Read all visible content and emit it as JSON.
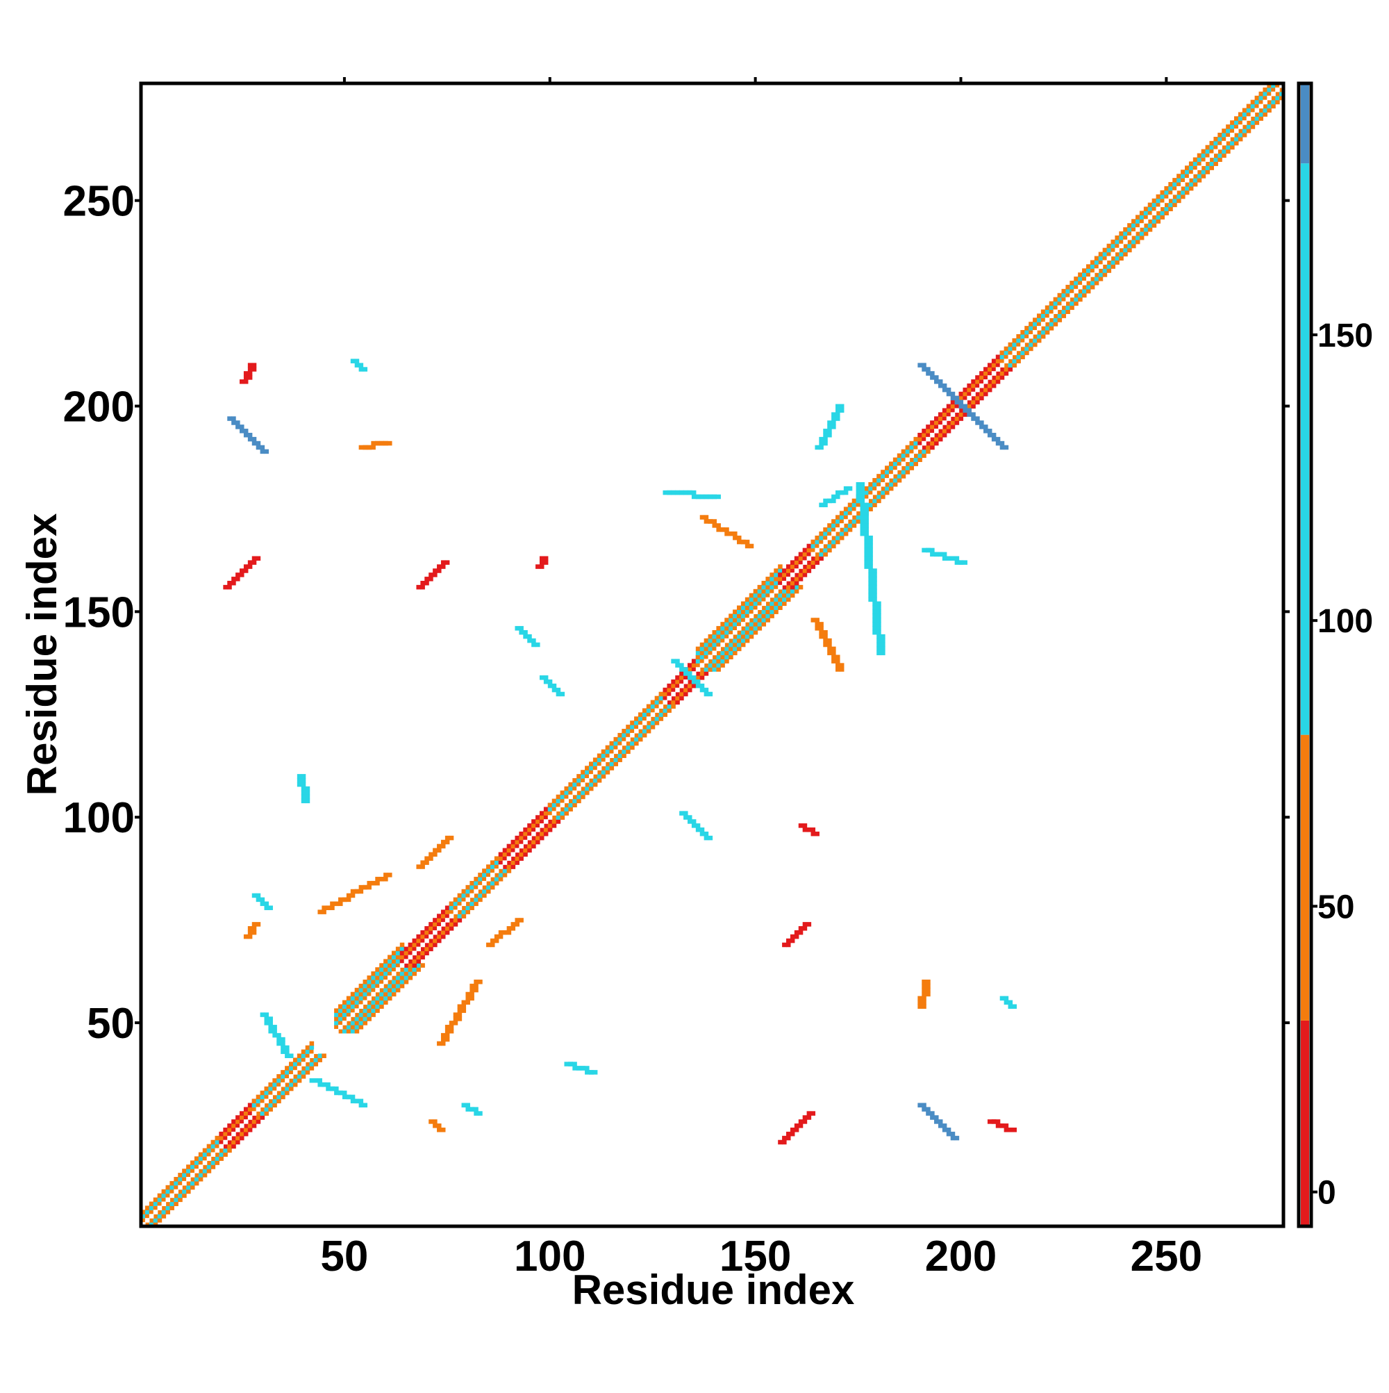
{
  "chart_data": {
    "type": "heatmap",
    "title": "",
    "xlabel": "Residue index",
    "ylabel": "Residue index",
    "xlim": [
      1,
      278
    ],
    "ylim": [
      1,
      278
    ],
    "xticks": [
      50,
      100,
      150,
      200,
      250
    ],
    "yticks": [
      50,
      100,
      150,
      200,
      250
    ],
    "grid": false,
    "colorbar": {
      "ticks": [
        0,
        50,
        100,
        150
      ],
      "range": [
        -6,
        194
      ],
      "bands": [
        {
          "from": -6,
          "to": 30,
          "color": "#e31a1c"
        },
        {
          "from": 30,
          "to": 80,
          "color": "#f47c0e"
        },
        {
          "from": 80,
          "to": 180,
          "color": "#29d6e6"
        },
        {
          "from": 180,
          "to": 194,
          "color": "#4a8cc4"
        }
      ]
    },
    "diagonal": {
      "from": 1,
      "to": 278,
      "segments": [
        {
          "from": 1,
          "to": 20,
          "pattern": "orange-cyan"
        },
        {
          "from": 20,
          "to": 28,
          "pattern": "red-orange"
        },
        {
          "from": 28,
          "to": 42,
          "pattern": "orange-cyan"
        },
        {
          "from": 48,
          "to": 64,
          "pattern": "orange-cyan-wide"
        },
        {
          "from": 64,
          "to": 76,
          "pattern": "red-orange"
        },
        {
          "from": 76,
          "to": 88,
          "pattern": "orange-cyan"
        },
        {
          "from": 88,
          "to": 100,
          "pattern": "red-orange"
        },
        {
          "from": 100,
          "to": 128,
          "pattern": "orange-cyan"
        },
        {
          "from": 128,
          "to": 136,
          "pattern": "red-orange"
        },
        {
          "from": 136,
          "to": 156,
          "pattern": "orange-cyan-wide"
        },
        {
          "from": 156,
          "to": 164,
          "pattern": "red-orange"
        },
        {
          "from": 164,
          "to": 190,
          "pattern": "orange-cyan"
        },
        {
          "from": 190,
          "to": 210,
          "pattern": "red-orange"
        },
        {
          "from": 210,
          "to": 278,
          "pattern": "orange-cyan"
        }
      ]
    },
    "contacts": [
      {
        "x1": 22,
        "y1": 197,
        "x2": 30,
        "y2": 189,
        "value": 185
      },
      {
        "x1": 190,
        "y1": 210,
        "x2": 210,
        "y2": 190,
        "value": 185
      },
      {
        "x1": 190,
        "y1": 30,
        "x2": 198,
        "y2": 22,
        "value": 185
      },
      {
        "x1": 21,
        "y1": 156,
        "x2": 28,
        "y2": 163,
        "value": 5
      },
      {
        "x1": 156,
        "y1": 21,
        "x2": 163,
        "y2": 28,
        "value": 5
      },
      {
        "x1": 68,
        "y1": 156,
        "x2": 74,
        "y2": 162,
        "value": 15
      },
      {
        "x1": 157,
        "y1": 69,
        "x2": 162,
        "y2": 74,
        "value": 15
      },
      {
        "x1": 85,
        "y1": 69,
        "x2": 92,
        "y2": 75,
        "value": 45
      },
      {
        "x1": 68,
        "y1": 88,
        "x2": 75,
        "y2": 95,
        "value": 45
      },
      {
        "x1": 30,
        "y1": 52,
        "x2": 36,
        "y2": 42,
        "value": 110
      },
      {
        "x1": 42,
        "y1": 36,
        "x2": 54,
        "y2": 30,
        "value": 110
      },
      {
        "x1": 98,
        "y1": 134,
        "x2": 102,
        "y2": 130,
        "value": 170
      },
      {
        "x1": 130,
        "y1": 138,
        "x2": 138,
        "y2": 130,
        "value": 170
      },
      {
        "x1": 132,
        "y1": 101,
        "x2": 138,
        "y2": 95,
        "value": 160
      },
      {
        "x1": 104,
        "y1": 40,
        "x2": 110,
        "y2": 38,
        "value": 140
      },
      {
        "x1": 39,
        "y1": 110,
        "x2": 40,
        "y2": 104,
        "value": 150
      },
      {
        "x1": 52,
        "y1": 211,
        "x2": 54,
        "y2": 209,
        "value": 140
      },
      {
        "x1": 161,
        "y1": 98,
        "x2": 164,
        "y2": 96,
        "value": 10
      },
      {
        "x1": 97,
        "y1": 161,
        "x2": 98,
        "y2": 163,
        "value": 10
      },
      {
        "x1": 44,
        "y1": 77,
        "x2": 60,
        "y2": 86,
        "value": 55
      },
      {
        "x1": 73,
        "y1": 45,
        "x2": 82,
        "y2": 60,
        "value": 55
      },
      {
        "x1": 137,
        "y1": 173,
        "x2": 148,
        "y2": 166,
        "value": 45
      },
      {
        "x1": 164,
        "y1": 148,
        "x2": 170,
        "y2": 136,
        "value": 45
      },
      {
        "x1": 191,
        "y1": 165,
        "x2": 200,
        "y2": 162,
        "value": 130
      },
      {
        "x1": 165,
        "y1": 190,
        "x2": 170,
        "y2": 200,
        "value": 130
      },
      {
        "x1": 207,
        "y1": 26,
        "x2": 212,
        "y2": 24,
        "value": 20
      },
      {
        "x1": 25,
        "y1": 206,
        "x2": 27,
        "y2": 210,
        "value": 20
      },
      {
        "x1": 71,
        "y1": 26,
        "x2": 73,
        "y2": 24,
        "value": 55
      },
      {
        "x1": 26,
        "y1": 71,
        "x2": 28,
        "y2": 74,
        "value": 55
      },
      {
        "x1": 210,
        "y1": 56,
        "x2": 212,
        "y2": 54,
        "value": 120
      },
      {
        "x1": 54,
        "y1": 190,
        "x2": 60,
        "y2": 191,
        "value": 55
      },
      {
        "x1": 190,
        "y1": 54,
        "x2": 191,
        "y2": 60,
        "value": 55
      },
      {
        "x1": 28,
        "y1": 81,
        "x2": 31,
        "y2": 78,
        "value": 120
      },
      {
        "x1": 79,
        "y1": 30,
        "x2": 82,
        "y2": 28,
        "value": 140
      },
      {
        "x1": 128,
        "y1": 179,
        "x2": 140,
        "y2": 178,
        "value": 120
      },
      {
        "x1": 175,
        "y1": 181,
        "x2": 180,
        "y2": 140,
        "value": 120
      },
      {
        "x1": 92,
        "y1": 146,
        "x2": 96,
        "y2": 142,
        "value": 110
      },
      {
        "x1": 166,
        "y1": 176,
        "x2": 172,
        "y2": 180,
        "value": 120
      }
    ]
  }
}
